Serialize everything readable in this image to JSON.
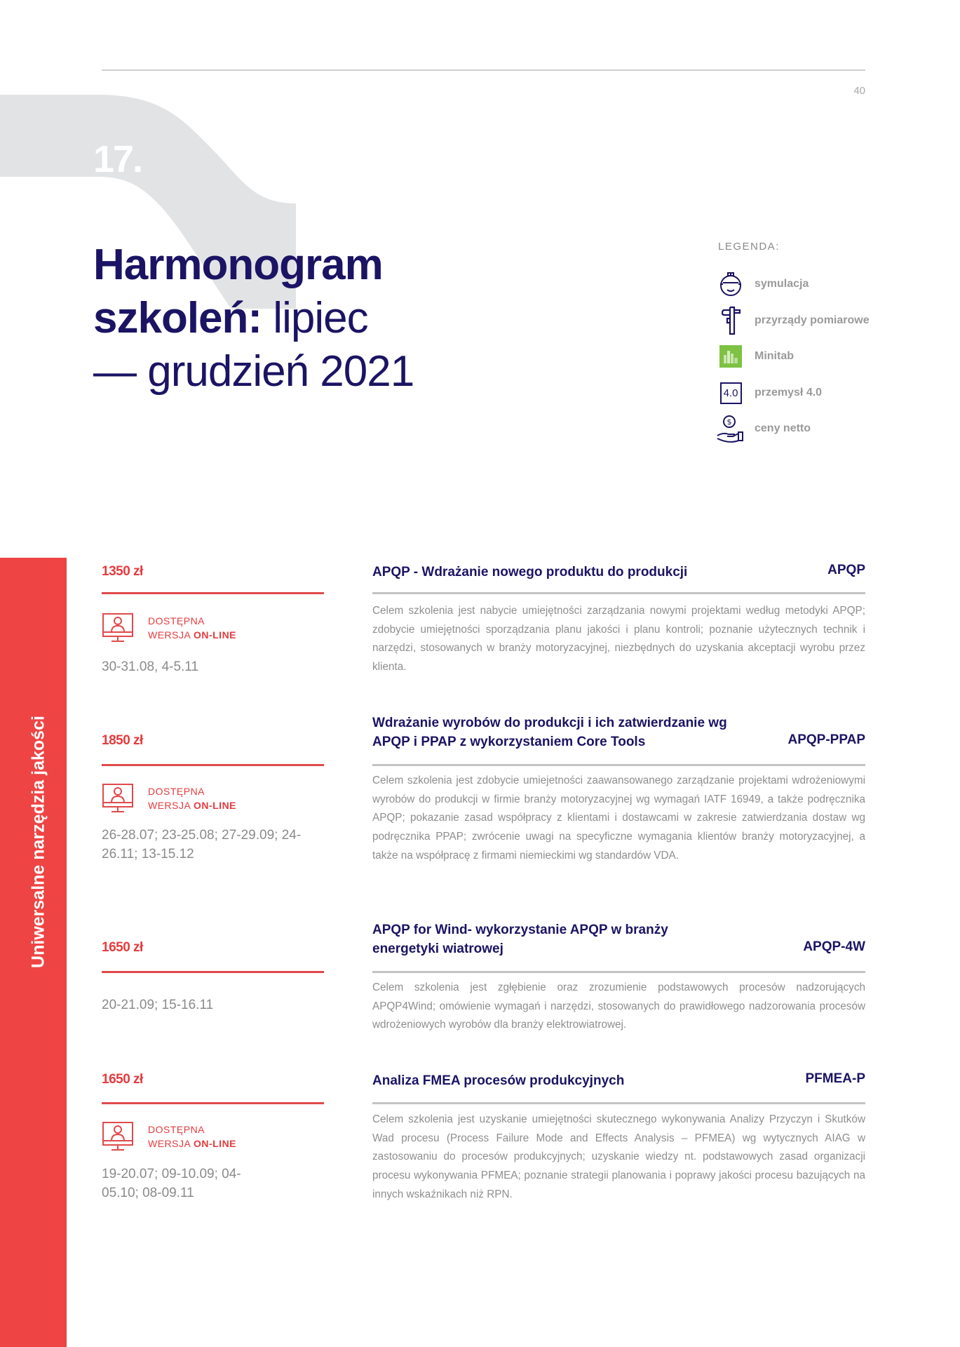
{
  "page_number": "40",
  "chapter_number": "17.",
  "title": {
    "bold1": "Harmonogram",
    "bold2": "szkoleń:",
    "normal2": " lipiec",
    "line3": "— grudzień 2021"
  },
  "legend": {
    "heading": "LEGENDA:",
    "items": [
      {
        "icon": "vr-helmet-icon",
        "label": "symulacja"
      },
      {
        "icon": "caliper-icon",
        "label": "przyrządy pomiarowe"
      },
      {
        "icon": "minitab-icon",
        "label": "Minitab"
      },
      {
        "icon": "industry-4-icon",
        "label": "przemysł 4.0",
        "icon_text": "4.0"
      },
      {
        "icon": "hand-coin-icon",
        "label": "ceny netto"
      }
    ]
  },
  "sidebar_label": "Uniwersalne narzędzia jakości",
  "online_badge": {
    "line1": "DOSTĘPNA",
    "line2_prefix": "WERSJA ",
    "line2_bold": "ON-LINE"
  },
  "colors": {
    "accent_red": "#ee4444",
    "navy": "#1b1464",
    "grey_text": "#8e8e8e"
  },
  "courses": [
    {
      "price": "1350 zł",
      "online": true,
      "dates": "30-31.08, 4-5.11",
      "title": "APQP - Wdrażanie nowego produktu do produkcji",
      "code": "APQP",
      "description": "Celem szkolenia jest nabycie umiejętności zarządzania nowymi projektami według metodyki APQP; zdobycie umiejętności sporządzania planu jakości i planu kontroli; poznanie użytecznych technik i narzędzi, stosowanych w branży motoryzacyjnej, niezbędnych do uzyskania akceptacji wyrobu przez klienta."
    },
    {
      "price": "1850 zł",
      "online": true,
      "dates": "26-28.07; 23-25.08; 27-29.09; 24-26.11; 13-15.12",
      "title": "Wdrażanie wyrobów do produkcji i ich zatwierdzanie wg APQP i PPAP z wykorzystaniem Core Tools",
      "code": "APQP-PPAP",
      "description": "Celem szkolenia jest zdobycie umiejetności zaawansowanego zarządzanie projektami wdrożeniowymi wyrobów do produkcji w firmie branży motoryzacyjnej wg wymagań IATF 16949, a także podręcznika APQP; pokazanie zasad współpracy z klientami i dostawcami w zakresie zatwierdzania dostaw wg podręcznika PPAP; zwrócenie uwagi na specyficzne wymagania klientów branży motoryzacyjnej, a także na współpracę z firmami niemieckimi wg standardów VDA."
    },
    {
      "price": "1650 zł",
      "online": false,
      "dates": "20-21.09; 15-16.11",
      "title": "APQP for Wind- wykorzystanie APQP w branży energetyki wiatrowej",
      "code": "APQP-4W",
      "description": "Celem szkolenia jest zgłębienie oraz zrozumienie podstawowych procesów nadzorujących APQP4Wind; omówienie wymagań i narzędzi, stosowanych do prawidłowego nadzorowania procesów wdrożeniowych wyrobów dla branży elektrowiatrowej."
    },
    {
      "price": "1650 zł",
      "online": true,
      "dates": "19-20.07; 09-10.09; 04-05.10; 08-09.11",
      "title": "Analiza FMEA procesów produkcyjnych",
      "code": "PFMEA-P",
      "description": "Celem szkolenia jest uzyskanie umiejętności skutecznego wykonywania Analizy Przyczyn i Skutków Wad procesu (Process Failure Mode and Effects Analysis – PFMEA) wg wytycznych AIAG w zastosowaniu do procesów produkcyjnych; uzyskanie wiedzy nt. podstawowych zasad organizacji procesu wykonywania PFMEA; poznanie strategii planowania i poprawy jakości procesu bazujących na innych wskaźnikach niż RPN."
    }
  ]
}
